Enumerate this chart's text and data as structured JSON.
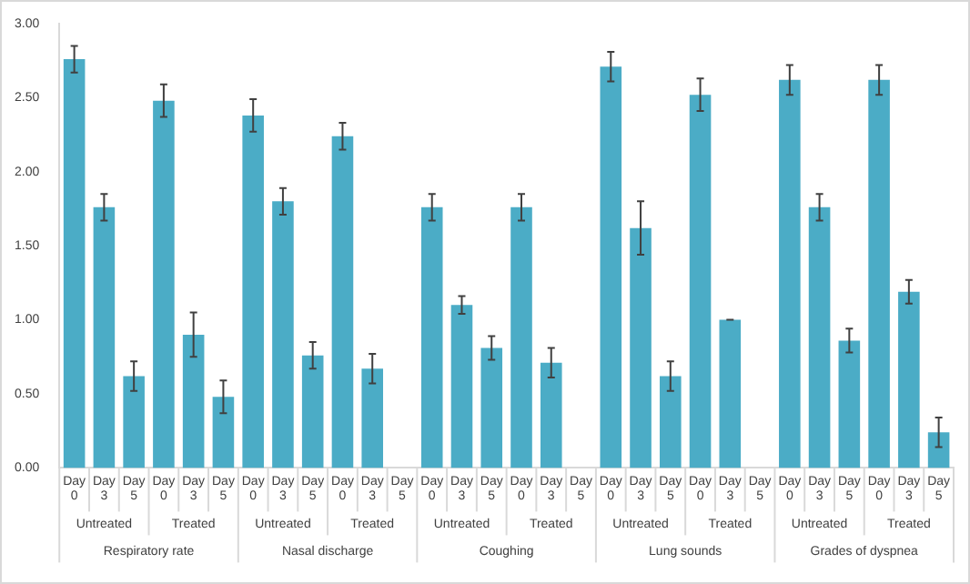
{
  "chart_data": {
    "type": "bar",
    "categories": [
      "Day 0",
      "Day 3",
      "Day 5",
      "Day 0",
      "Day 3",
      "Day 5",
      "Day 0",
      "Day 3",
      "Day 5",
      "Day 0",
      "Day 3",
      "Day 5",
      "Day 0",
      "Day 3",
      "Day 5",
      "Day 0",
      "Day 3",
      "Day 5",
      "Day 0",
      "Day 3",
      "Day 5",
      "Day 0",
      "Day 3",
      "Day 5",
      "Day 0",
      "Day 3",
      "Day 5",
      "Day 0",
      "Day 3",
      "Day 5"
    ],
    "values": [
      2.76,
      1.76,
      0.62,
      2.48,
      0.9,
      0.48,
      2.38,
      1.8,
      0.76,
      2.24,
      0.67,
      0,
      1.76,
      1.1,
      0.81,
      1.76,
      0.71,
      0,
      2.71,
      1.62,
      0.62,
      2.52,
      1.0,
      0,
      2.62,
      1.76,
      0.86,
      2.62,
      1.19,
      0.24
    ],
    "errors": [
      0.09,
      0.09,
      0.1,
      0.11,
      0.15,
      0.11,
      0.11,
      0.09,
      0.09,
      0.09,
      0.1,
      null,
      0.09,
      0.06,
      0.08,
      0.09,
      0.1,
      null,
      0.1,
      0.18,
      0.1,
      0.11,
      0,
      null,
      0.1,
      0.09,
      0.08,
      0.1,
      0.08,
      0.1
    ],
    "color": "#4bacc6",
    "ylim": [
      0,
      3
    ],
    "yticks": [
      {
        "value": 0,
        "label": "0.00"
      },
      {
        "value": 0.5,
        "label": "0.50"
      },
      {
        "value": 1,
        "label": "1.00"
      },
      {
        "value": 1.5,
        "label": "1.50"
      },
      {
        "value": 2,
        "label": "2.00"
      },
      {
        "value": 2.5,
        "label": "2.50"
      },
      {
        "value": 3,
        "label": "3.00"
      }
    ],
    "grid": false,
    "legend": false,
    "annotations": [
      "Untreated",
      "Treated",
      "Respiratory rate",
      "Untreated",
      "Treated",
      "Nasal discharge",
      "Untreated",
      "Treated",
      "Coughing",
      "Untreated",
      "Treated",
      "Lung sounds",
      "Untreated",
      "Treated",
      "Grades of dyspnea"
    ]
  }
}
